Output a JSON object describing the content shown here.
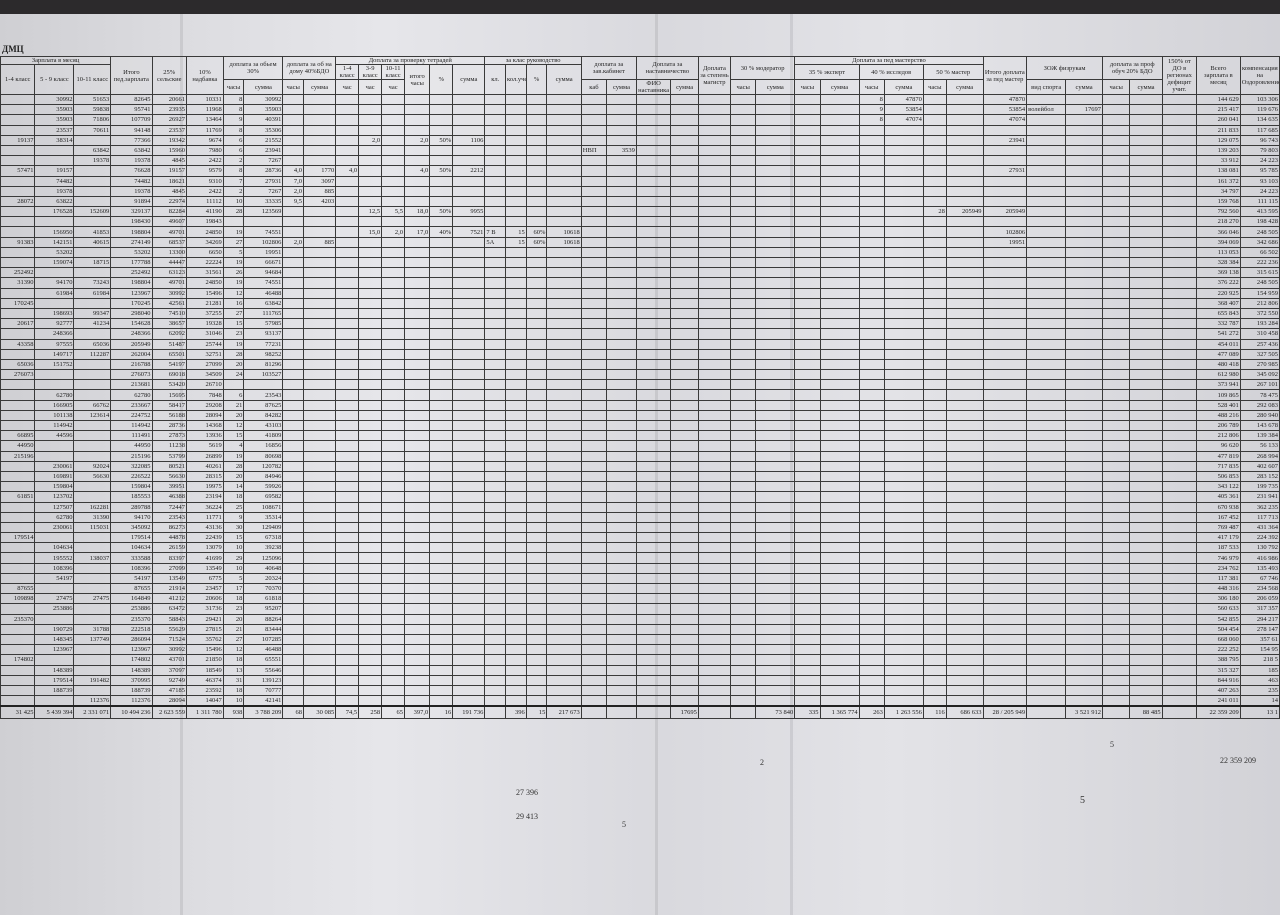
{
  "document": {
    "title": "ДМЦ",
    "headers": {
      "salary_month": "Зарплата в месяц",
      "c14": "1-4 класс",
      "c59": "5 - 9 класс",
      "c1011": "10-11 класс",
      "ped": "Итого пед.зарплата",
      "sel": "25% сельские",
      "nadb": "10% надбавка",
      "obem": "доплата за обьем 30%",
      "hours": "часы",
      "sum": "сумма",
      "dom": "доплата за об на дому 40%БДО",
      "prov": "Доплата за проверку тетрадей",
      "p14": "1-4 класс",
      "p59": "3-9 класс",
      "p1011": "10-11 класс",
      "chas": "час",
      "pH": "итого часы",
      "pct": "%",
      "kl": "за клас руководство",
      "klN": "кл.",
      "klCnt": "кол.учеников",
      "kab": "доплата за зав.кабинет",
      "kabN": "каб",
      "nast": "Доплата за наставничество",
      "nastF": "ФИО наставника",
      "mag": "Доплата за степень магистр",
      "mod": "30 % модератор",
      "pedm": "Доплата за пед мастерство",
      "exp": "35 % эксперт",
      "iss": "40 % исследов",
      "mas": "50 % мастер",
      "pedTot": "Итого доплата за пед мастер",
      "zoj": "ЗОЖ физрукам",
      "zojV": "вид спорта",
      "prof": "доплата за проф обуч 20% БДО",
      "def": "150% от ДО в регионах дефицит учит.",
      "total": "Всего зарплата в месяц",
      "komp": "компенсация на Оздоровление"
    },
    "rows": [
      {
        "c59": "30992",
        "c1011": "51653",
        "ped": "82645",
        "sel": "20661",
        "nadb": "10331",
        "obH": "8",
        "obS": "30992",
        "issH": "8",
        "issS": "47870",
        "pedTot": "47870",
        "total": "144 629",
        "komp": "103 306"
      },
      {
        "c59": "35903",
        "c1011": "59838",
        "ped": "95741",
        "sel": "23935",
        "nadb": "11968",
        "obH": "8",
        "obS": "35903",
        "issH": "9",
        "issS": "53854",
        "pedTot": "53854",
        "zojV": "волейбол",
        "zojS": "17697",
        "total": "215 417",
        "komp": "119 676"
      },
      {
        "c59": "35903",
        "c1011": "71806",
        "ped": "107709",
        "sel": "26927",
        "nadb": "13464",
        "obH": "9",
        "obS": "40391",
        "issH": "8",
        "issS": "47074",
        "pedTot": "47074",
        "total": "260 041",
        "komp": "134 635"
      },
      {
        "c59": "23537",
        "c1011": "70611",
        "ped": "94148",
        "sel": "23537",
        "nadb": "11769",
        "obH": "8",
        "obS": "35306",
        "total": "211 833",
        "komp": "117 685"
      },
      {
        "c14": "19137",
        "c59": "38314",
        "ped": "77366",
        "sel": "19342",
        "nadb": "9674",
        "obH": "6",
        "obS": "21552",
        "p59": "2,0",
        "pH": "2,0",
        "pPct": "50%",
        "pS": "1106",
        "pedTot": "23941",
        "total": "129 075",
        "komp": "96 743"
      },
      {
        "c1011": "63842",
        "ped": "63842",
        "sel": "15960",
        "nadb": "7980",
        "obH": "6",
        "obS": "23941",
        "kab": "НВП",
        "kabS": "3539",
        "total": "139 203",
        "komp": "79 803"
      },
      {
        "c1011": "19378",
        "ped": "19378",
        "sel": "4845",
        "nadb": "2422",
        "obH": "2",
        "obS": "7267",
        "total": "33 912",
        "komp": "24 223"
      },
      {
        "c14": "57471",
        "c59": "19157",
        "ped": "76628",
        "sel": "19157",
        "nadb": "9579",
        "obH": "8",
        "obS": "28736",
        "domH": "4,0",
        "domS": "1770",
        "p14": "4,0",
        "pH": "4,0",
        "pPct": "50%",
        "pS": "2212",
        "pedTot": "27931",
        "total": "138 081",
        "komp": "95 785"
      },
      {
        "c59": "74482",
        "ped": "74482",
        "sel": "18621",
        "nadb": "9310",
        "obH": "7",
        "obS": "27931",
        "domH": "7,0",
        "domS": "3097",
        "total": "161 372",
        "komp": "93 103"
      },
      {
        "c59": "19378",
        "ped": "19378",
        "sel": "4845",
        "nadb": "2422",
        "obH": "2",
        "obS": "7267",
        "domH": "2,0",
        "domS": "885",
        "total": "34 797",
        "komp": "24 223"
      },
      {
        "c14": "28072",
        "c59": "63822",
        "ped": "91894",
        "sel": "22974",
        "nadb": "11112",
        "obH": "10",
        "obS": "33335",
        "domH": "9,5",
        "domS": "4203",
        "total": "159 768",
        "komp": "111 115"
      },
      {
        "c59": "176528",
        "c1011": "152609",
        "ped": "329137",
        "sel": "82284",
        "nadb": "41190",
        "obH": "28",
        "obS": "123569",
        "p59": "12,5",
        "p1011": "5,5",
        "pH": "18,0",
        "pPct": "50%",
        "pS": "9955",
        "masH": "28",
        "masS": "205949",
        "pedTot": "205949",
        "total": "792 560",
        "komp": "413 595"
      },
      {
        "ped": "198430",
        "sel": "49607",
        "nadb": "19843",
        "total": "218 270",
        "komp": "198 428"
      },
      {
        "c59": "156950",
        "c1011": "41853",
        "ped": "198804",
        "sel": "49701",
        "nadb": "24850",
        "obH": "19",
        "obS": "74551",
        "p59": "15,0",
        "p1011": "2,0",
        "pH": "17,0",
        "pPct": "40%",
        "pS": "7521",
        "kl": "7 В",
        "klN": "15",
        "klPct": "60%",
        "klS": "10618",
        "pedTot": "102806",
        "total": "366 046",
        "komp": "248 505"
      },
      {
        "c14": "91383",
        "c59": "142151",
        "c1011": "40615",
        "ped": "274149",
        "sel": "68537",
        "nadb": "34269",
        "obH": "27",
        "obS": "102806",
        "domH": "2,0",
        "domS": "885",
        "kl": "5А",
        "klN": "15",
        "klPct": "60%",
        "klS": "10618",
        "pedTot": "19951",
        "total": "394 069",
        "komp": "342 686"
      },
      {
        "c59": "53202",
        "ped": "53202",
        "sel": "13300",
        "nadb": "6650",
        "obH": "5",
        "obS": "19951",
        "total": "113 053",
        "komp": "66 502"
      },
      {
        "c59": "159074",
        "c1011": "18715",
        "ped": "177788",
        "sel": "44447",
        "nadb": "22224",
        "obH": "19",
        "obS": "66671",
        "total": "328 384",
        "komp": "222 236"
      },
      {
        "c14": "252492",
        "ped": "252492",
        "sel": "63123",
        "nadb": "31561",
        "obH": "26",
        "obS": "94684",
        "total": "369 138",
        "komp": "315 615"
      },
      {
        "c14": "31390",
        "c59": "94170",
        "c1011": "73243",
        "ped": "198804",
        "sel": "49701",
        "nadb": "24850",
        "obH": "19",
        "obS": "74551",
        "total": "376 222",
        "komp": "248 505"
      },
      {
        "c59": "61984",
        "c1011": "61984",
        "ped": "123967",
        "sel": "30992",
        "nadb": "15496",
        "obH": "12",
        "obS": "46488",
        "total": "220 925",
        "komp": "154 959"
      },
      {
        "c14": "170245",
        "ped": "170245",
        "sel": "42561",
        "nadb": "21281",
        "obH": "16",
        "obS": "63842",
        "total": "368 407",
        "komp": "212 806"
      },
      {
        "c59": "198693",
        "c1011": "99347",
        "ped": "298040",
        "sel": "74510",
        "nadb": "37255",
        "obH": "27",
        "obS": "111765",
        "total": "655 843",
        "komp": "372 550"
      },
      {
        "c14": "20617",
        "c59": "92777",
        "c1011": "41234",
        "ped": "154628",
        "sel": "38657",
        "nadb": "19328",
        "obH": "15",
        "obS": "57985",
        "total": "332 787",
        "komp": "193 284"
      },
      {
        "c59": "248366",
        "ped": "248366",
        "sel": "62092",
        "nadb": "31046",
        "obH": "23",
        "obS": "93137",
        "total": "541 272",
        "komp": "310 458"
      },
      {
        "c14": "43358",
        "c59": "97555",
        "c1011": "65036",
        "ped": "205949",
        "sel": "51487",
        "nadb": "25744",
        "obH": "19",
        "obS": "77231",
        "total": "454 011",
        "komp": "257 436"
      },
      {
        "c59": "149717",
        "c1011": "112287",
        "ped": "262004",
        "sel": "65501",
        "nadb": "32751",
        "obH": "28",
        "obS": "98252",
        "total": "477 089",
        "komp": "327 505"
      },
      {
        "c14": "65036",
        "c59": "151752",
        "ped": "216788",
        "sel": "54197",
        "nadb": "27099",
        "obH": "20",
        "obS": "81296",
        "total": "480 418",
        "komp": "270 985"
      },
      {
        "c14": "276073",
        "ped": "276073",
        "sel": "69018",
        "nadb": "34509",
        "obH": "24",
        "obS": "103527",
        "total": "612 980",
        "komp": "345 092"
      },
      {
        "ped": "213681",
        "sel": "53420",
        "nadb": "26710",
        "total": "373 941",
        "komp": "267 101"
      },
      {
        "c59": "62780",
        "ped": "62780",
        "sel": "15695",
        "nadb": "7848",
        "obH": "6",
        "obS": "23543",
        "total": "109 865",
        "komp": "78 475"
      },
      {
        "c59": "166905",
        "c1011": "66762",
        "ped": "233667",
        "sel": "58417",
        "nadb": "29208",
        "obH": "21",
        "obS": "87625",
        "total": "528 401",
        "komp": "292 083"
      },
      {
        "c59": "101138",
        "c1011": "123614",
        "ped": "224752",
        "sel": "56188",
        "nadb": "28094",
        "obH": "20",
        "obS": "84282",
        "total": "488 216",
        "komp": "280 940"
      },
      {
        "c59": "114942",
        "ped": "114942",
        "sel": "28736",
        "nadb": "14368",
        "obH": "12",
        "obS": "43103",
        "total": "206 789",
        "komp": "143 678"
      },
      {
        "c14": "66895",
        "c59": "44596",
        "ped": "111491",
        "sel": "27873",
        "nadb": "13936",
        "obH": "15",
        "obS": "41809",
        "total": "212 806",
        "komp": "139 384"
      },
      {
        "c14": "44950",
        "ped": "44950",
        "sel": "11238",
        "nadb": "5619",
        "obH": "4",
        "obS": "16856",
        "total": "96 620",
        "komp": "56 133"
      },
      {
        "c14": "215196",
        "ped": "215196",
        "sel": "53799",
        "nadb": "26899",
        "obH": "19",
        "obS": "80698",
        "total": "477 819",
        "komp": "268 994"
      },
      {
        "c59": "230061",
        "c1011": "92024",
        "ped": "322085",
        "sel": "80521",
        "nadb": "40261",
        "obH": "28",
        "obS": "120782",
        "total": "717 835",
        "komp": "402 607"
      },
      {
        "c59": "169891",
        "c1011": "56630",
        "ped": "226522",
        "sel": "56630",
        "nadb": "28315",
        "obH": "20",
        "obS": "84946",
        "total": "506 853",
        "komp": "283 152"
      },
      {
        "c59": "159804",
        "ped": "159804",
        "sel": "39951",
        "nadb": "19975",
        "obH": "14",
        "obS": "59926",
        "total": "343 122",
        "komp": "199 735"
      },
      {
        "c14": "61851",
        "c59": "123702",
        "ped": "185553",
        "sel": "46388",
        "nadb": "23194",
        "obH": "18",
        "obS": "69582",
        "total": "405 361",
        "komp": "231 941"
      },
      {
        "c59": "127507",
        "c1011": "162281",
        "ped": "289788",
        "sel": "72447",
        "nadb": "36224",
        "obH": "25",
        "obS": "108671",
        "total": "670 938",
        "komp": "362 235"
      },
      {
        "c59": "62780",
        "c1011": "31390",
        "ped": "94170",
        "sel": "23543",
        "nadb": "11771",
        "obH": "9",
        "obS": "35314",
        "total": "167 452",
        "komp": "117 713"
      },
      {
        "c59": "230061",
        "c1011": "115031",
        "ped": "345092",
        "sel": "86273",
        "nadb": "43136",
        "obH": "30",
        "obS": "129409",
        "total": "769 487",
        "komp": "431 364"
      },
      {
        "c14": "179514",
        "ped": "179514",
        "sel": "44878",
        "nadb": "22439",
        "obH": "15",
        "obS": "67318",
        "total": "417 179",
        "komp": "224 392"
      },
      {
        "c59": "104634",
        "ped": "104634",
        "sel": "26159",
        "nadb": "13079",
        "obH": "10",
        "obS": "39238",
        "total": "187 533",
        "komp": "130 792"
      },
      {
        "c59": "195552",
        "c1011": "138037",
        "ped": "333588",
        "sel": "83397",
        "nadb": "41699",
        "obH": "29",
        "obS": "125096",
        "total": "746 979",
        "komp": "416 986"
      },
      {
        "c59": "108396",
        "ped": "108396",
        "sel": "27099",
        "nadb": "13549",
        "obH": "10",
        "obS": "40648",
        "total": "234 762",
        "komp": "135 493"
      },
      {
        "c59": "54197",
        "ped": "54197",
        "sel": "13549",
        "nadb": "6775",
        "obH": "5",
        "obS": "20324",
        "total": "117 381",
        "komp": "67 746"
      },
      {
        "c14": "87655",
        "ped": "87655",
        "sel": "21914",
        "nadb": "23457",
        "obH": "17",
        "obS": "70370",
        "total": "448 316",
        "komp": "234 568"
      },
      {
        "c14": "109898",
        "c59": "27475",
        "c1011": "27475",
        "ped": "164849",
        "sel": "41212",
        "nadb": "20606",
        "obH": "18",
        "obS": "61818",
        "total": "306 180",
        "komp": "206 059"
      },
      {
        "c59": "253886",
        "ped": "253886",
        "sel": "63472",
        "nadb": "31736",
        "obH": "23",
        "obS": "95207",
        "total": "560 633",
        "komp": "317 357"
      },
      {
        "c14": "235370",
        "ped": "235370",
        "sel": "58843",
        "nadb": "29421",
        "obH": "20",
        "obS": "88264",
        "total": "542 855",
        "komp": "294 217"
      },
      {
        "c59": "190729",
        "c1011": "31788",
        "ped": "222518",
        "sel": "55629",
        "nadb": "27815",
        "obH": "21",
        "obS": "83444",
        "total": "504 454",
        "komp": "278 147"
      },
      {
        "c59": "148345",
        "c1011": "137749",
        "ped": "286094",
        "sel": "71524",
        "nadb": "35762",
        "obH": "27",
        "obS": "107285",
        "total": "668 060",
        "komp": "357 61"
      },
      {
        "c59": "123967",
        "ped": "123967",
        "sel": "30992",
        "nadb": "15496",
        "obH": "12",
        "obS": "46488",
        "total": "222 252",
        "komp": "154 95"
      },
      {
        "c14": "174802",
        "ped": "174802",
        "sel": "43701",
        "nadb": "21850",
        "obH": "18",
        "obS": "65551",
        "total": "388 795",
        "komp": "218 5"
      },
      {
        "c59": "148389",
        "ped": "148389",
        "sel": "37097",
        "nadb": "18549",
        "obH": "13",
        "obS": "55646",
        "total": "315 327",
        "komp": "185"
      },
      {
        "c59": "179514",
        "c1011": "191482",
        "ped": "370995",
        "sel": "92749",
        "nadb": "46374",
        "obH": "31",
        "obS": "139123",
        "total": "844 916",
        "komp": "463"
      },
      {
        "c59": "188739",
        "ped": "188739",
        "sel": "47185",
        "nadb": "23592",
        "obH": "18",
        "obS": "70777",
        "total": "407 263",
        "komp": "235"
      },
      {
        "c1011": "112376",
        "ped": "112376",
        "sel": "28094",
        "nadb": "14047",
        "obH": "10",
        "obS": "42141",
        "total": "241 011",
        "komp": "14"
      }
    ],
    "totals": {
      "c14": "31 425",
      "c59": "5 439 394",
      "c1011": "2 331 071",
      "ped": "10 494 236",
      "sel": "2 623 559",
      "nadb": "1 311 780",
      "obH": "938",
      "obS": "3 788 209",
      "domH": "68",
      "domS": "30 085",
      "p14": "74,5",
      "p59": "258",
      "p1011": "65",
      "pH": "397,0",
      "pPct": "16",
      "pS": "191 736",
      "klN": "396",
      "klPct": "15",
      "klS": "217 673",
      "nastS": "17695",
      "modS": "73 840",
      "expH": "335",
      "expS": "1 365 774",
      "issH": "263",
      "issS": "1 263 556",
      "masH": "116",
      "masS": "686 633",
      "pedTot": "28 / 205 949",
      "zojS": "3 521 912",
      "profS": "88 485",
      "total": "22 359 209",
      "komp": "13 1"
    },
    "footer": {
      "n1": "27  396",
      "n2": "29  413",
      "n3": "5",
      "n4": "2",
      "n5": "5",
      "n6": "22 359 209",
      "n7": "5"
    }
  }
}
